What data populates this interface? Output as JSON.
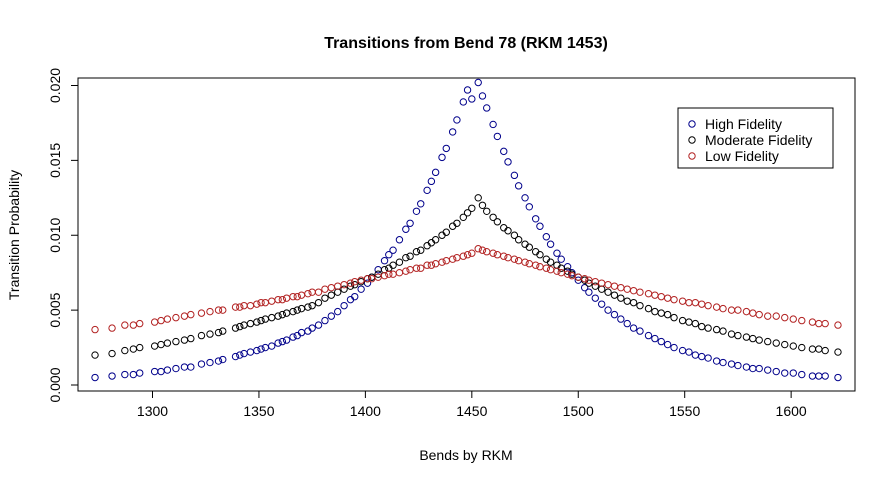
{
  "chart_data": {
    "type": "scatter",
    "title": "Transitions from Bend 78 (RKM 1453)",
    "xlabel": "Bends by RKM",
    "ylabel": "Transition Probability",
    "xlim": [
      1265,
      1630
    ],
    "ylim": [
      -0.0004,
      0.0205
    ],
    "x_ticks": [
      "1300",
      "1350",
      "1400",
      "1450",
      "1500",
      "1550",
      "1600"
    ],
    "y_ticks": [
      "0.000",
      "0.005",
      "0.010",
      "0.015",
      "0.020"
    ],
    "legend_position": "top-right",
    "grid": false,
    "peak_x": 1453,
    "x": [
      1273,
      1281,
      1287,
      1291,
      1294,
      1301,
      1304,
      1307,
      1311,
      1315,
      1318,
      1323,
      1327,
      1331,
      1333,
      1339,
      1341,
      1343,
      1346,
      1349,
      1351,
      1353,
      1356,
      1359,
      1361,
      1363,
      1366,
      1368,
      1370,
      1373,
      1375,
      1378,
      1381,
      1384,
      1387,
      1390,
      1393,
      1395,
      1398,
      1401,
      1403,
      1406,
      1409,
      1411,
      1413,
      1416,
      1419,
      1421,
      1424,
      1426,
      1429,
      1431,
      1433,
      1436,
      1438,
      1441,
      1443,
      1446,
      1448,
      1450,
      1453,
      1455,
      1457,
      1460,
      1462,
      1465,
      1467,
      1470,
      1472,
      1475,
      1477,
      1480,
      1482,
      1485,
      1487,
      1490,
      1492,
      1495,
      1497,
      1500,
      1503,
      1505,
      1508,
      1511,
      1514,
      1517,
      1520,
      1523,
      1526,
      1529,
      1533,
      1536,
      1539,
      1542,
      1545,
      1549,
      1552,
      1555,
      1558,
      1561,
      1565,
      1568,
      1572,
      1575,
      1579,
      1582,
      1585,
      1589,
      1593,
      1597,
      1601,
      1605,
      1610,
      1613,
      1616,
      1622
    ],
    "series": [
      {
        "name": "High Fidelity",
        "color": "#00008b",
        "y": [
          0.0005,
          0.0006,
          0.0007,
          0.0007,
          0.0008,
          0.0009,
          0.0009,
          0.001,
          0.0011,
          0.0012,
          0.0012,
          0.0014,
          0.0015,
          0.0016,
          0.0017,
          0.0019,
          0.002,
          0.0021,
          0.0022,
          0.0023,
          0.0024,
          0.0025,
          0.0026,
          0.0028,
          0.0029,
          0.003,
          0.0032,
          0.0033,
          0.0035,
          0.0036,
          0.0038,
          0.004,
          0.0043,
          0.0046,
          0.0049,
          0.0053,
          0.0057,
          0.0059,
          0.0064,
          0.0068,
          0.0072,
          0.0077,
          0.0083,
          0.0087,
          0.009,
          0.0097,
          0.0104,
          0.0108,
          0.0116,
          0.0121,
          0.013,
          0.0136,
          0.0142,
          0.0152,
          0.0158,
          0.0169,
          0.0177,
          0.0189,
          0.0197,
          0.0191,
          0.0202,
          0.0193,
          0.0185,
          0.0174,
          0.0166,
          0.0156,
          0.0149,
          0.014,
          0.0133,
          0.0125,
          0.0119,
          0.0111,
          0.0106,
          0.0099,
          0.0094,
          0.0088,
          0.0084,
          0.0079,
          0.0075,
          0.007,
          0.0065,
          0.0062,
          0.0058,
          0.0054,
          0.005,
          0.0047,
          0.0044,
          0.0041,
          0.0038,
          0.0036,
          0.0033,
          0.0031,
          0.0029,
          0.0027,
          0.0025,
          0.0023,
          0.0022,
          0.002,
          0.0019,
          0.0018,
          0.0016,
          0.0015,
          0.0014,
          0.0013,
          0.0012,
          0.0011,
          0.0011,
          0.001,
          0.0009,
          0.0008,
          0.0008,
          0.0007,
          0.0006,
          0.0006,
          0.0006,
          0.0005
        ]
      },
      {
        "name": "Moderate Fidelity",
        "color": "#000000",
        "y": [
          0.002,
          0.0021,
          0.0023,
          0.0024,
          0.0025,
          0.0026,
          0.0027,
          0.0028,
          0.0029,
          0.003,
          0.0031,
          0.0033,
          0.0034,
          0.0035,
          0.0036,
          0.0038,
          0.0039,
          0.004,
          0.0041,
          0.0042,
          0.0043,
          0.0044,
          0.0045,
          0.0046,
          0.0047,
          0.0048,
          0.0049,
          0.005,
          0.0051,
          0.0052,
          0.0053,
          0.0055,
          0.0058,
          0.006,
          0.0062,
          0.0064,
          0.0066,
          0.0067,
          0.0069,
          0.0071,
          0.0072,
          0.0074,
          0.0077,
          0.0078,
          0.008,
          0.0082,
          0.0085,
          0.0086,
          0.0089,
          0.009,
          0.0093,
          0.0095,
          0.0097,
          0.01,
          0.0102,
          0.0106,
          0.0108,
          0.0112,
          0.0115,
          0.0118,
          0.0125,
          0.012,
          0.0116,
          0.0112,
          0.0109,
          0.0105,
          0.0103,
          0.01,
          0.0097,
          0.0094,
          0.0092,
          0.0089,
          0.0087,
          0.0084,
          0.0082,
          0.008,
          0.0078,
          0.0076,
          0.0074,
          0.0072,
          0.007,
          0.0068,
          0.0066,
          0.0064,
          0.0062,
          0.006,
          0.0058,
          0.0056,
          0.0055,
          0.0053,
          0.0051,
          0.0049,
          0.0048,
          0.0047,
          0.0045,
          0.0043,
          0.0042,
          0.0041,
          0.0039,
          0.0038,
          0.0037,
          0.0036,
          0.0034,
          0.0033,
          0.0032,
          0.0031,
          0.003,
          0.0029,
          0.0028,
          0.0027,
          0.0026,
          0.0025,
          0.0024,
          0.0024,
          0.0023,
          0.0022
        ]
      },
      {
        "name": "Low Fidelity",
        "color": "#b22222",
        "y": [
          0.0037,
          0.0038,
          0.004,
          0.004,
          0.0041,
          0.0042,
          0.0043,
          0.0044,
          0.0045,
          0.0046,
          0.0047,
          0.0048,
          0.0049,
          0.005,
          0.005,
          0.0052,
          0.0052,
          0.0053,
          0.0053,
          0.0054,
          0.0055,
          0.0055,
          0.0056,
          0.0057,
          0.0057,
          0.0058,
          0.0059,
          0.0059,
          0.006,
          0.0061,
          0.0062,
          0.0062,
          0.0064,
          0.0065,
          0.0066,
          0.0067,
          0.0068,
          0.0069,
          0.007,
          0.0071,
          0.0071,
          0.0072,
          0.0073,
          0.0074,
          0.0074,
          0.0075,
          0.0076,
          0.0077,
          0.0078,
          0.0078,
          0.008,
          0.008,
          0.0081,
          0.0082,
          0.0083,
          0.0084,
          0.0085,
          0.0086,
          0.0087,
          0.0088,
          0.0091,
          0.009,
          0.0089,
          0.0088,
          0.0087,
          0.0086,
          0.0085,
          0.0084,
          0.0083,
          0.0082,
          0.0081,
          0.008,
          0.0079,
          0.0078,
          0.0077,
          0.0076,
          0.0075,
          0.0074,
          0.0073,
          0.0072,
          0.0071,
          0.007,
          0.0069,
          0.0068,
          0.0067,
          0.0066,
          0.0065,
          0.0064,
          0.0063,
          0.0062,
          0.0061,
          0.006,
          0.0059,
          0.0058,
          0.0057,
          0.0056,
          0.0055,
          0.0055,
          0.0054,
          0.0053,
          0.0052,
          0.0051,
          0.005,
          0.005,
          0.0049,
          0.0048,
          0.0047,
          0.0046,
          0.0046,
          0.0045,
          0.0044,
          0.0043,
          0.0042,
          0.0041,
          0.0041,
          0.004
        ]
      }
    ]
  }
}
